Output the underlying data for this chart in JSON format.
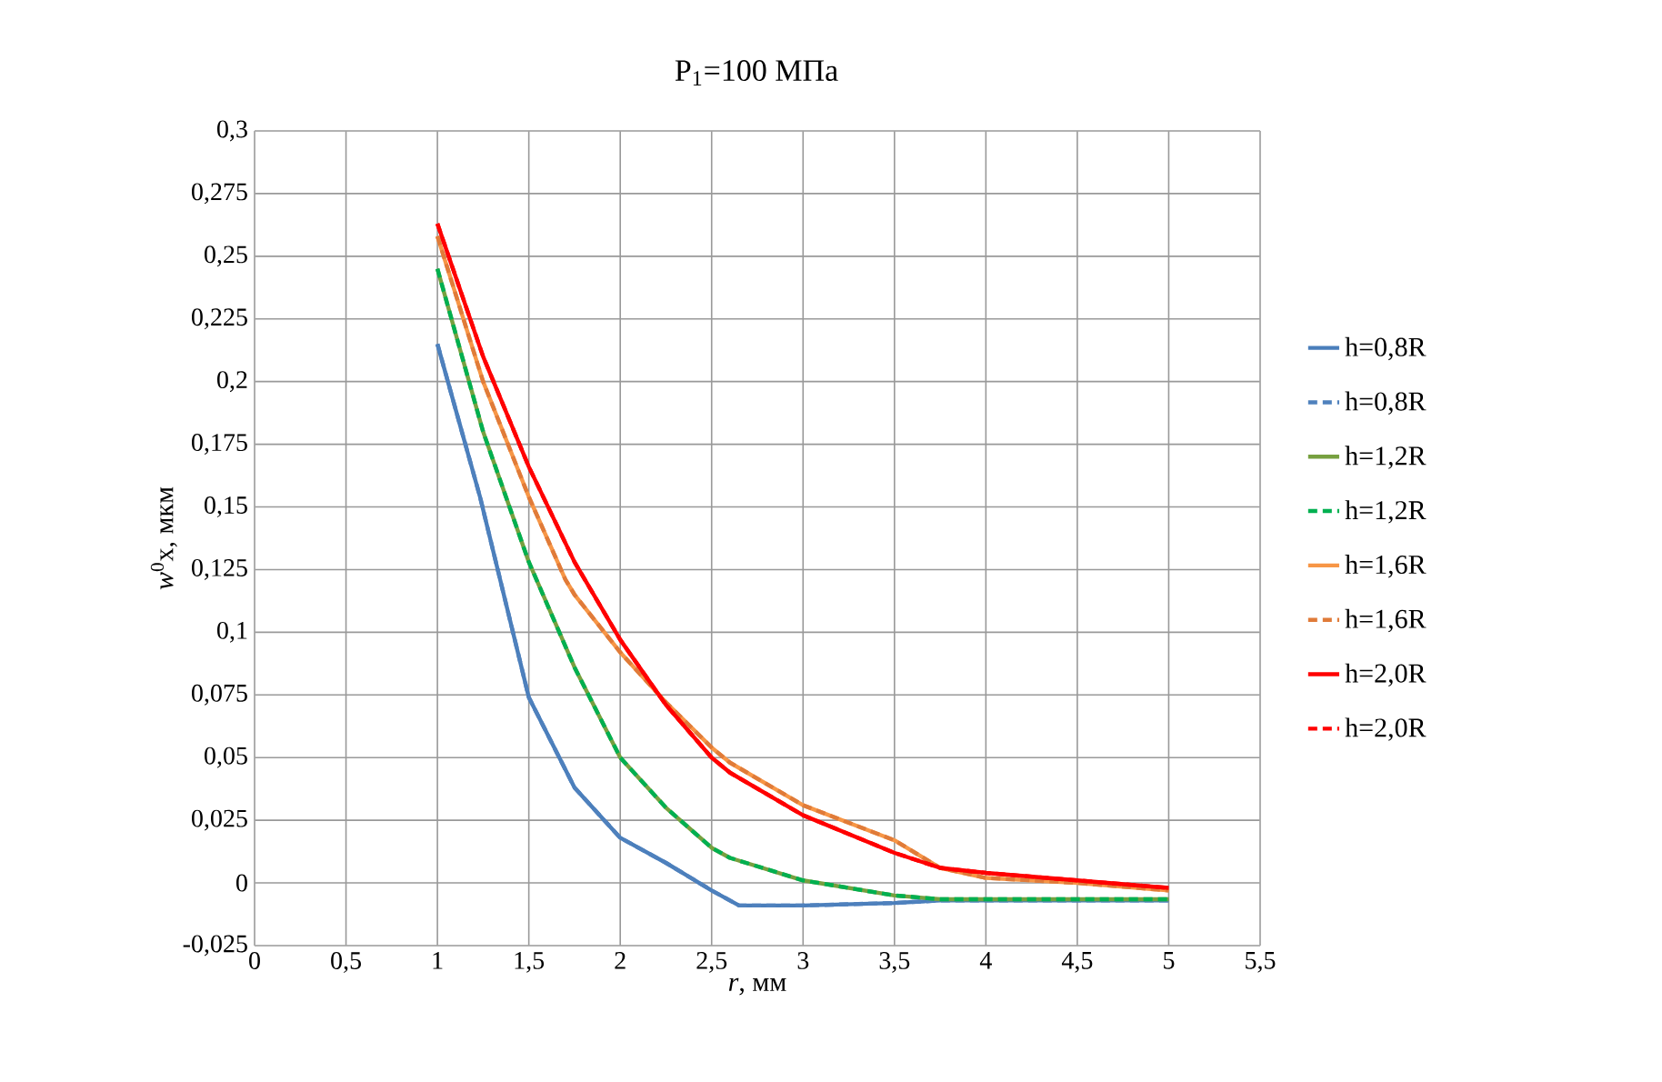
{
  "chart_data": {
    "type": "line",
    "title": "P$_{1}$=100 МПа",
    "xlabel": "*r*, мм",
    "ylabel": "*w*$^{0}$x, мкм",
    "xlim": [
      0,
      5.5
    ],
    "ylim": [
      -0.025,
      0.3
    ],
    "xticks": [
      0,
      {
        "value": 0.5,
        "label": "0,5"
      },
      1,
      {
        "value": 1.5,
        "label": "1,5"
      },
      2,
      {
        "value": 2.5,
        "label": "2,5"
      },
      3,
      {
        "value": 3.5,
        "label": "3,5"
      },
      4,
      {
        "value": 4.5,
        "label": "4,5"
      },
      5,
      {
        "value": 5.5,
        "label": "5,5"
      }
    ],
    "yticks": [
      {
        "value": -0.025,
        "label": "-0,025"
      },
      0,
      {
        "value": 0.025,
        "label": "0,025"
      },
      {
        "value": 0.05,
        "label": "0,05"
      },
      {
        "value": 0.075,
        "label": "0,075"
      },
      {
        "value": 0.1,
        "label": "0,1"
      },
      {
        "value": 0.125,
        "label": "0,125"
      },
      {
        "value": 0.15,
        "label": "0,15"
      },
      {
        "value": 0.175,
        "label": "0,175"
      },
      {
        "value": 0.2,
        "label": "0,2"
      },
      {
        "value": 0.225,
        "label": "0,225"
      },
      {
        "value": 0.25,
        "label": "0,25"
      },
      {
        "value": 0.275,
        "label": "0,275"
      },
      {
        "value": 0.3,
        "label": "0,3"
      }
    ],
    "grid": true,
    "legend": "right",
    "marker": "none",
    "series": [
      {
        "name": "h=0,8R",
        "color": "#4a7ebb",
        "line_style": "solid",
        "x": [
          1,
          1.233,
          1.5,
          1.75,
          2,
          2.25,
          2.5,
          2.65,
          3,
          3.5,
          3.75,
          4,
          4.5,
          5
        ],
        "values": [
          0.215,
          0.154,
          0.074,
          0.038,
          0.018,
          0.008,
          -0.003,
          -0.009,
          -0.009,
          -0.008,
          -0.007,
          -0.007,
          -0.007,
          -0.007
        ]
      },
      {
        "name": "h=0,8R",
        "color": "#4f81bd",
        "line_style": "dashed",
        "x": [
          1,
          1.233,
          1.5,
          1.75,
          2,
          2.25,
          2.5,
          2.65,
          3,
          3.5,
          3.75,
          4,
          4.5,
          5
        ],
        "values": [
          0.215,
          0.154,
          0.074,
          0.038,
          0.018,
          0.008,
          -0.003,
          -0.009,
          -0.009,
          -0.008,
          -0.007,
          -0.007,
          -0.007,
          -0.007
        ]
      },
      {
        "name": "h=1,2R",
        "color": "#77a040",
        "line_style": "solid",
        "x": [
          1,
          1.25,
          1.5,
          1.75,
          2,
          2.25,
          2.5,
          2.6,
          3,
          3.5,
          3.75,
          4,
          4.5,
          5
        ],
        "values": [
          0.245,
          0.18,
          0.128,
          0.086,
          0.05,
          0.03,
          0.014,
          0.01,
          0.001,
          -0.005,
          -0.0065,
          -0.0065,
          -0.0065,
          -0.0065
        ]
      },
      {
        "name": "h=1,2R",
        "color": "#00b050",
        "line_style": "dashed",
        "x": [
          1,
          1.25,
          1.5,
          1.75,
          2,
          2.25,
          2.5,
          2.6,
          3,
          3.5,
          3.75,
          4,
          4.5,
          5
        ],
        "values": [
          0.245,
          0.18,
          0.128,
          0.086,
          0.05,
          0.03,
          0.014,
          0.01,
          0.001,
          -0.005,
          -0.0065,
          -0.0065,
          -0.0065,
          -0.0065
        ]
      },
      {
        "name": "h=1,6R",
        "color": "#f79646",
        "line_style": "solid",
        "x": [
          1,
          1.25,
          1.5,
          1.7,
          1.75,
          2,
          2.25,
          2.5,
          2.6,
          3,
          3.5,
          3.75,
          4,
          4.5,
          5
        ],
        "values": [
          0.258,
          0.2,
          0.154,
          0.121,
          0.115,
          0.092,
          0.072,
          0.054,
          0.048,
          0.031,
          0.017,
          0.006,
          0.002,
          0.0,
          -0.003
        ]
      },
      {
        "name": "h=1,6R",
        "color": "#e07b39",
        "line_style": "dashed",
        "x": [
          1,
          1.25,
          1.5,
          1.7,
          1.75,
          2,
          2.25,
          2.5,
          2.6,
          3,
          3.5,
          3.75,
          4,
          4.5,
          5
        ],
        "values": [
          0.258,
          0.2,
          0.154,
          0.121,
          0.115,
          0.092,
          0.072,
          0.054,
          0.048,
          0.031,
          0.017,
          0.006,
          0.002,
          0.0,
          -0.003
        ]
      },
      {
        "name": "h=2,0R",
        "color": "#ff0000",
        "line_style": "solid",
        "x": [
          1,
          1.25,
          1.5,
          1.75,
          2,
          2.25,
          2.5,
          2.6,
          3,
          3.5,
          3.75,
          4,
          4.5,
          5
        ],
        "values": [
          0.263,
          0.21,
          0.166,
          0.128,
          0.097,
          0.071,
          0.05,
          0.044,
          0.027,
          0.012,
          0.006,
          0.004,
          0.001,
          -0.002
        ]
      },
      {
        "name": "h=2,0R",
        "color": "#ff0000",
        "line_style": "dashed",
        "x": [
          1,
          1.25,
          1.5,
          1.75,
          2,
          2.25,
          2.5,
          2.6,
          3,
          3.5,
          3.75,
          4,
          4.5,
          5
        ],
        "values": [
          0.263,
          0.21,
          0.166,
          0.128,
          0.097,
          0.071,
          0.05,
          0.044,
          0.027,
          0.012,
          0.006,
          0.004,
          0.001,
          -0.002
        ]
      }
    ]
  }
}
